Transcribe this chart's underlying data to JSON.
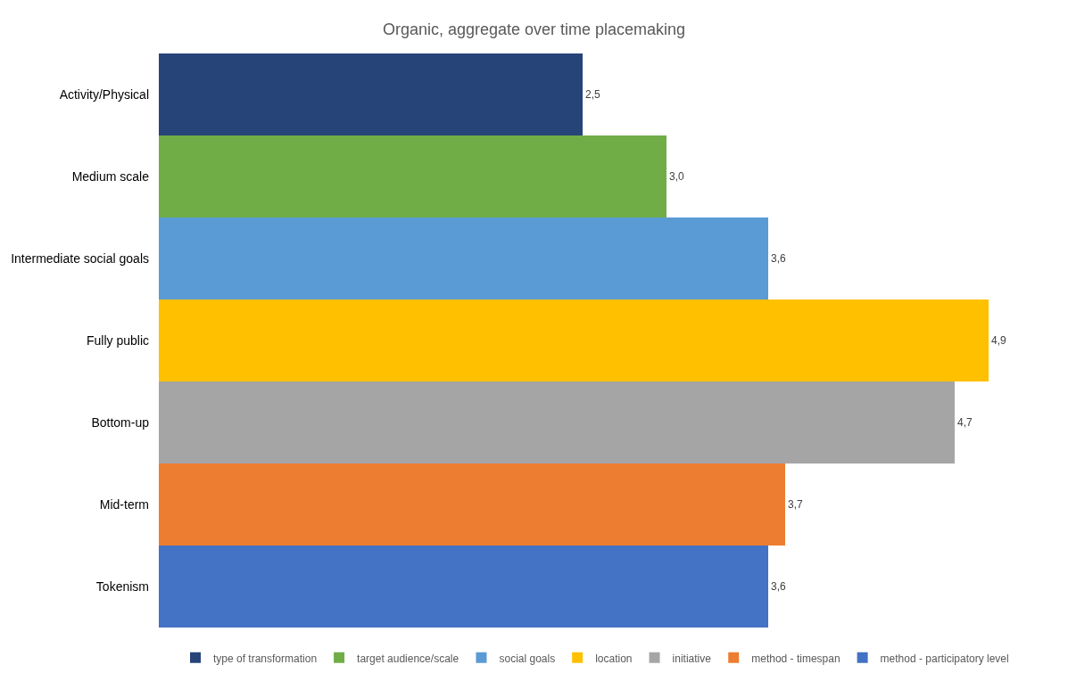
{
  "chart_data": {
    "type": "bar",
    "orientation": "horizontal",
    "title": "Organic, aggregate over time placemaking",
    "categories": [
      "Activity/Physical",
      "Medium scale",
      "Intermediate social goals",
      "Fully public",
      "Bottom-up",
      "Mid-term",
      "Tokenism"
    ],
    "series": [
      {
        "name": "type of transformation",
        "color": "#264478",
        "values": [
          2.5,
          null,
          null,
          null,
          null,
          null,
          null
        ],
        "value_labels": [
          "2,5",
          null,
          null,
          null,
          null,
          null,
          null
        ]
      },
      {
        "name": "target audience/scale",
        "color": "#70ad47",
        "values": [
          null,
          3.0,
          null,
          null,
          null,
          null,
          null
        ],
        "value_labels": [
          null,
          "3,0",
          null,
          null,
          null,
          null,
          null
        ]
      },
      {
        "name": "social goals",
        "color": "#5b9bd5",
        "values": [
          null,
          null,
          3.6,
          null,
          null,
          null,
          null
        ],
        "value_labels": [
          null,
          null,
          "3,6",
          null,
          null,
          null,
          null
        ]
      },
      {
        "name": "location",
        "color": "#ffc000",
        "values": [
          null,
          null,
          null,
          4.9,
          null,
          null,
          null
        ],
        "value_labels": [
          null,
          null,
          null,
          "4,9",
          null,
          null,
          null
        ]
      },
      {
        "name": "initiative",
        "color": "#a5a5a5",
        "values": [
          null,
          null,
          null,
          null,
          4.7,
          null,
          null
        ],
        "value_labels": [
          null,
          null,
          null,
          null,
          "4,7",
          null,
          null
        ]
      },
      {
        "name": "method - timespan",
        "color": "#ed7d31",
        "values": [
          null,
          null,
          null,
          null,
          null,
          3.7,
          null
        ],
        "value_labels": [
          null,
          null,
          null,
          null,
          null,
          "3,7",
          null
        ]
      },
      {
        "name": "method - participatory level",
        "color": "#4472c4",
        "values": [
          null,
          null,
          null,
          null,
          null,
          null,
          3.6
        ],
        "value_labels": [
          null,
          null,
          null,
          null,
          null,
          null,
          "3,6"
        ]
      }
    ],
    "tick_labels": "y",
    "legend": "bottom"
  }
}
